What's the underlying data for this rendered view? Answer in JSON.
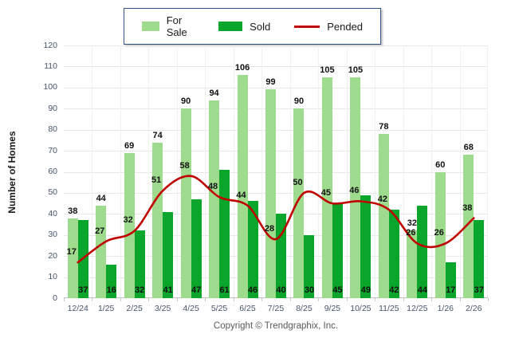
{
  "legend": {
    "items": [
      {
        "label": "For Sale",
        "color": "#9edb8d",
        "type": "bar"
      },
      {
        "label": "Sold",
        "color": "#0aa62b",
        "type": "bar"
      },
      {
        "label": "Pended",
        "color": "#c00000",
        "type": "line"
      }
    ]
  },
  "y_axis": {
    "title": "Number of Homes",
    "ticks": [
      0,
      10,
      20,
      30,
      40,
      50,
      60,
      70,
      80,
      90,
      100,
      110,
      120
    ]
  },
  "footer": {
    "copyright": "Copyright © Trendgraphix, Inc."
  },
  "chart_data": {
    "type": "bar",
    "categories": [
      "12/24",
      "1/25",
      "2/25",
      "3/25",
      "4/25",
      "5/25",
      "6/25",
      "7/25",
      "8/25",
      "9/25",
      "10/25",
      "11/25",
      "12/25",
      "1/26",
      "2/26"
    ],
    "series": [
      {
        "name": "For Sale",
        "type": "bar",
        "color": "#9edb8d",
        "values": [
          38,
          44,
          69,
          74,
          90,
          94,
          106,
          99,
          90,
          105,
          105,
          78,
          32,
          60,
          68
        ]
      },
      {
        "name": "Sold",
        "type": "bar",
        "color": "#0aa62b",
        "values": [
          37,
          16,
          32,
          41,
          47,
          61,
          46,
          40,
          30,
          45,
          49,
          42,
          44,
          17,
          37
        ]
      },
      {
        "name": "Pended",
        "type": "line",
        "color": "#c00000",
        "values": [
          17,
          27,
          32,
          51,
          58,
          48,
          44,
          28,
          50,
          45,
          46,
          42,
          26,
          26,
          38
        ]
      }
    ],
    "title": "",
    "xlabel": "",
    "ylabel": "Number of Homes",
    "ylim": [
      0,
      120
    ],
    "grid": true,
    "legend_position": "top"
  }
}
